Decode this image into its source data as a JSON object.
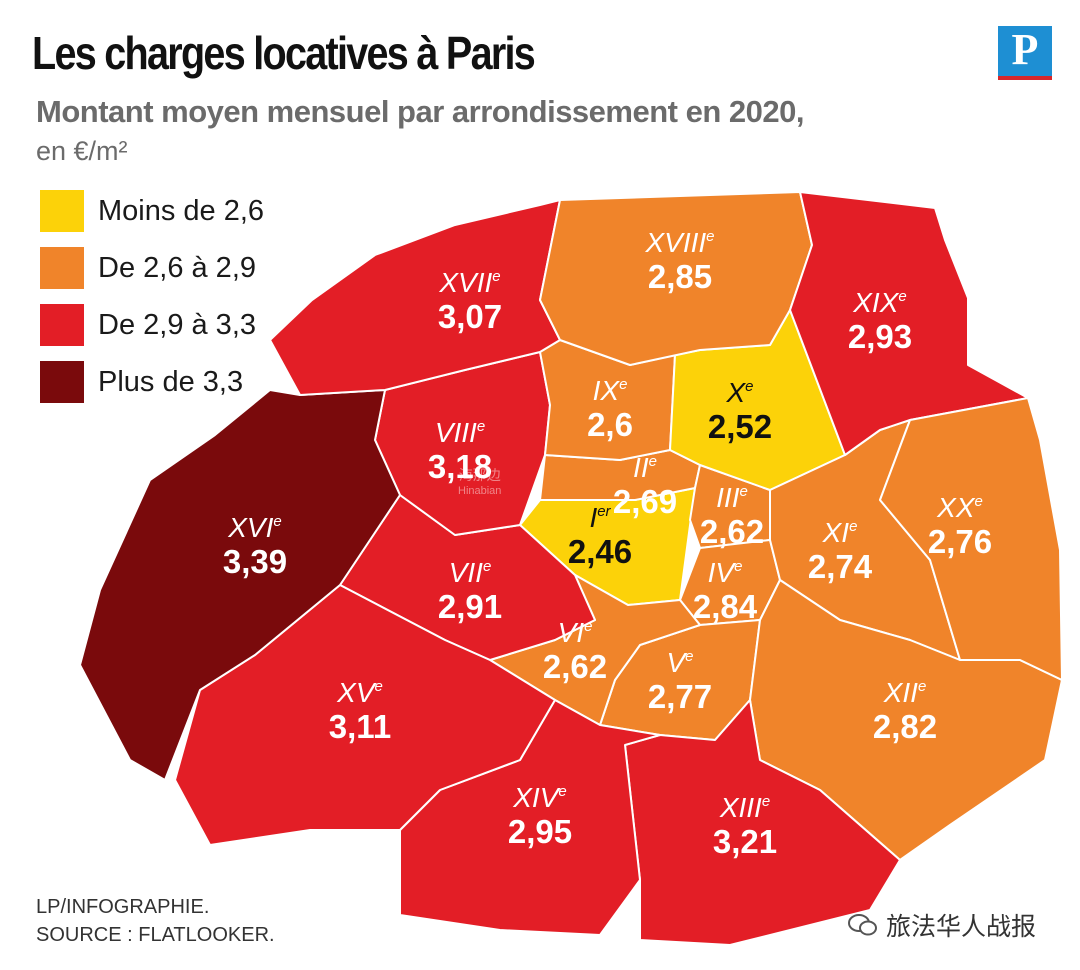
{
  "title": "Les charges locatives à Paris",
  "subtitle": "Montant moyen mensuel par arrondissement en 2020,",
  "unit": "en €/m²",
  "logo_letter": "P",
  "legend": [
    {
      "label": "Moins de 2,6",
      "color": "#fcd209"
    },
    {
      "label": "De 2,6 à 2,9",
      "color": "#f0842a"
    },
    {
      "label": "De 2,9 à 3,3",
      "color": "#e31e26"
    },
    {
      "label": "Plus de 3,3",
      "color": "#7a0a0c"
    }
  ],
  "arrondissements": [
    {
      "id": "I",
      "roman": "I",
      "suffix": "er",
      "value": "2,46",
      "category": 0
    },
    {
      "id": "II",
      "roman": "II",
      "suffix": "e",
      "value": "2,69",
      "category": 1
    },
    {
      "id": "III",
      "roman": "III",
      "suffix": "e",
      "value": "2,62",
      "category": 1
    },
    {
      "id": "IV",
      "roman": "IV",
      "suffix": "e",
      "value": "2,84",
      "category": 1
    },
    {
      "id": "V",
      "roman": "V",
      "suffix": "e",
      "value": "2,77",
      "category": 1
    },
    {
      "id": "VI",
      "roman": "VI",
      "suffix": "e",
      "value": "2,62",
      "category": 1
    },
    {
      "id": "VII",
      "roman": "VII",
      "suffix": "e",
      "value": "2,91",
      "category": 2
    },
    {
      "id": "VIII",
      "roman": "VIII",
      "suffix": "e",
      "value": "3,18",
      "category": 2
    },
    {
      "id": "IX",
      "roman": "IX",
      "suffix": "e",
      "value": "2,6",
      "category": 1
    },
    {
      "id": "X",
      "roman": "X",
      "suffix": "e",
      "value": "2,52",
      "category": 0
    },
    {
      "id": "XI",
      "roman": "XI",
      "suffix": "e",
      "value": "2,74",
      "category": 1
    },
    {
      "id": "XII",
      "roman": "XII",
      "suffix": "e",
      "value": "2,82",
      "category": 1
    },
    {
      "id": "XIII",
      "roman": "XIII",
      "suffix": "e",
      "value": "3,21",
      "category": 2
    },
    {
      "id": "XIV",
      "roman": "XIV",
      "suffix": "e",
      "value": "2,95",
      "category": 2
    },
    {
      "id": "XV",
      "roman": "XV",
      "suffix": "e",
      "value": "3,11",
      "category": 2
    },
    {
      "id": "XVI",
      "roman": "XVI",
      "suffix": "e",
      "value": "3,39",
      "category": 3
    },
    {
      "id": "XVII",
      "roman": "XVII",
      "suffix": "e",
      "value": "3,07",
      "category": 2
    },
    {
      "id": "XVIII",
      "roman": "XVIII",
      "suffix": "e",
      "value": "2,85",
      "category": 1
    },
    {
      "id": "XIX",
      "roman": "XIX",
      "suffix": "e",
      "value": "2,93",
      "category": 2
    },
    {
      "id": "XX",
      "roman": "XX",
      "suffix": "e",
      "value": "2,76",
      "category": 1
    }
  ],
  "credit_line1": "LP/INFOGRAPHIE.",
  "credit_line2": "SOURCE : FLATLOOKER.",
  "watermark_text": "旅法华人战报",
  "faint_watermark": "海那边",
  "faint_watermark_latin": "Hinabian"
}
